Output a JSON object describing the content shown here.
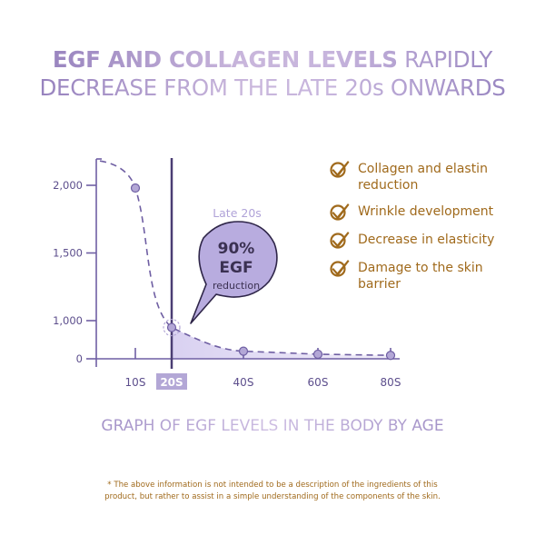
{
  "title": {
    "line1_bold": "EGF AND COLLAGEN LEVELS",
    "line1_light": "RAPIDLY",
    "line2": "DECREASE FROM THE LATE 20s ONWARDS"
  },
  "checklist": {
    "icon": "checkmark-circle-icon",
    "items": [
      {
        "lines": [
          "Collagen and elastin",
          "reduction"
        ]
      },
      {
        "lines": [
          "Wrinkle development"
        ]
      },
      {
        "lines": [
          "Decrease in elasticity"
        ]
      },
      {
        "lines": [
          "Damage to the skin",
          "barrier"
        ]
      }
    ]
  },
  "colors": {
    "axis": "#6f5fa3",
    "marker_fill": "#b3a7d6",
    "area_fill": "#ddd6f2",
    "highlight_line": "#4a3d73",
    "bubble_fill": "#b8acdf",
    "gold": "#a06a1c"
  },
  "chart_data": {
    "type": "line",
    "title": "GRAPH OF EGF LEVELS IN THE BODY BY AGE",
    "xlabel": "",
    "ylabel": "",
    "categories": [
      "10S",
      "20S",
      "40S",
      "60S",
      "80S"
    ],
    "highlighted_category": "20S",
    "yticks": [
      "2,000",
      "1,500",
      "1,000",
      "0"
    ],
    "ylim": [
      0,
      2200
    ],
    "series": [
      {
        "name": "EGF level",
        "values": [
          1980,
          820,
          200,
          120,
          90
        ]
      }
    ],
    "annotation": {
      "label": "Late 20s",
      "bubble_value": "90%",
      "bubble_title": "EGF",
      "bubble_caption": "reduction"
    },
    "grid": false
  },
  "footnote": {
    "line1": "* The above information is not intended to be a description of the ingredients of this",
    "line2": "product, but rather to assist in a simple understanding of the components of the skin."
  }
}
